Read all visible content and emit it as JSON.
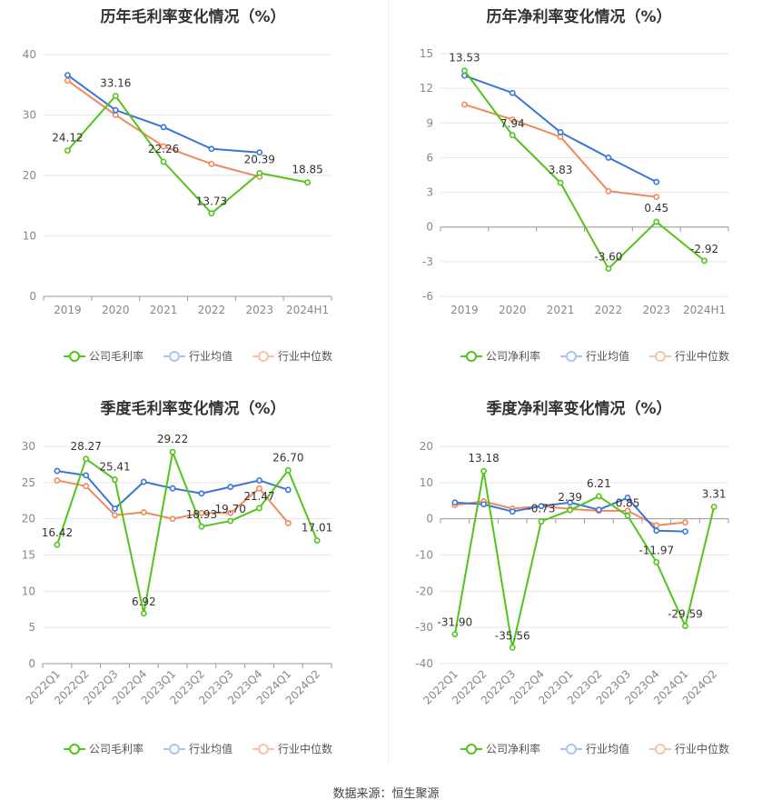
{
  "source": "数据来源：恒生聚源",
  "chart_data": [
    {
      "id": "p1",
      "type": "line",
      "title": "历年毛利率变化情况（%）",
      "categories": [
        "2019",
        "2020",
        "2021",
        "2022",
        "2023",
        "2024H1"
      ],
      "ylim": [
        0,
        40
      ],
      "yticks": [
        0,
        10,
        20,
        30,
        40
      ],
      "grid": true,
      "legend_position": "bottom",
      "series": [
        {
          "name": "公司毛利率",
          "color": "#52c41a",
          "values": [
            24.12,
            33.16,
            22.26,
            13.73,
            20.39,
            18.85
          ],
          "labels": [
            "24.12",
            "33.16",
            "22.26",
            "13.73",
            "20.39",
            "18.85"
          ]
        },
        {
          "name": "行业均值",
          "color": "#3a75d8",
          "values": [
            36.6,
            30.8,
            28.0,
            24.4,
            23.8,
            null
          ]
        },
        {
          "name": "行业中位数",
          "color": "#f08a5d",
          "values": [
            35.7,
            30.0,
            24.8,
            21.9,
            19.8,
            null
          ]
        }
      ]
    },
    {
      "id": "p2",
      "type": "line",
      "title": "历年净利率变化情况（%）",
      "categories": [
        "2019",
        "2020",
        "2021",
        "2022",
        "2023",
        "2024H1"
      ],
      "ylim": [
        -6,
        15
      ],
      "yticks": [
        -6,
        -3,
        0,
        3,
        6,
        9,
        12,
        15
      ],
      "grid": true,
      "legend_position": "bottom",
      "series": [
        {
          "name": "公司净利率",
          "color": "#52c41a",
          "values": [
            13.53,
            7.94,
            3.83,
            -3.6,
            0.45,
            -2.92
          ],
          "labels": [
            "13.53",
            "7.94",
            "3.83",
            "-3.60",
            "0.45",
            "-2.92"
          ]
        },
        {
          "name": "行业均值",
          "color": "#3a75d8",
          "values": [
            13.1,
            11.6,
            8.2,
            6.0,
            3.9,
            null
          ]
        },
        {
          "name": "行业中位数",
          "color": "#f08a5d",
          "values": [
            10.6,
            9.3,
            7.8,
            3.1,
            2.6,
            null
          ]
        }
      ]
    },
    {
      "id": "p3",
      "type": "line",
      "title": "季度毛利率变化情况（%）",
      "categories": [
        "2022Q1",
        "2022Q2",
        "2022Q3",
        "2022Q4",
        "2023Q1",
        "2023Q2",
        "2023Q3",
        "2023Q4",
        "2024Q1",
        "2024Q2"
      ],
      "ylim": [
        0,
        30
      ],
      "yticks": [
        0,
        5,
        10,
        15,
        20,
        25,
        30
      ],
      "grid": true,
      "legend_position": "bottom",
      "series": [
        {
          "name": "公司毛利率",
          "color": "#52c41a",
          "values": [
            16.42,
            28.27,
            25.41,
            6.92,
            29.22,
            18.93,
            19.7,
            21.47,
            26.7,
            17.01
          ],
          "labels": [
            "16.42",
            "28.27",
            "25.41",
            "6.92",
            "29.22",
            "18.93",
            "19.70",
            "21.47",
            "26.70",
            "17.01"
          ]
        },
        {
          "name": "行业均值",
          "color": "#3a75d8",
          "values": [
            26.6,
            26.0,
            21.4,
            25.1,
            24.2,
            23.5,
            24.4,
            25.3,
            24.0,
            null
          ]
        },
        {
          "name": "行业中位数",
          "color": "#f08a5d",
          "values": [
            25.3,
            24.5,
            20.5,
            20.9,
            20.0,
            20.8,
            20.8,
            24.2,
            19.4,
            null
          ]
        }
      ]
    },
    {
      "id": "p4",
      "type": "line",
      "title": "季度净利率变化情况（%）",
      "categories": [
        "2022Q1",
        "2022Q2",
        "2022Q3",
        "2022Q4",
        "2023Q1",
        "2023Q2",
        "2023Q3",
        "2023Q4",
        "2024Q1",
        "2024Q2"
      ],
      "ylim": [
        -40,
        20
      ],
      "yticks": [
        -40,
        -30,
        -20,
        -10,
        0,
        10,
        20
      ],
      "grid": true,
      "legend_position": "bottom",
      "series": [
        {
          "name": "公司净利率",
          "color": "#52c41a",
          "values": [
            -31.9,
            13.18,
            -35.56,
            -0.73,
            2.39,
            6.21,
            0.85,
            -11.97,
            -29.59,
            3.31
          ],
          "labels": [
            "-31.90",
            "13.18",
            "-35.56",
            "-0.73",
            "2.39",
            "6.21",
            "0.85",
            "-11.97",
            "-29.59",
            "3.31"
          ]
        },
        {
          "name": "行业均值",
          "color": "#3a75d8",
          "values": [
            4.5,
            4.0,
            2.0,
            3.5,
            4.5,
            2.5,
            5.8,
            -3.3,
            -3.5,
            null
          ]
        },
        {
          "name": "行业中位数",
          "color": "#f08a5d",
          "values": [
            3.8,
            4.8,
            2.8,
            3.5,
            2.7,
            2.2,
            2.2,
            -1.8,
            -1.0,
            null
          ]
        }
      ]
    }
  ]
}
